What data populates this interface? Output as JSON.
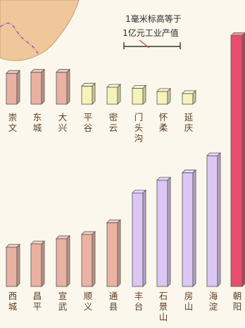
{
  "scale_note": {
    "line1": "1毫米标高等于",
    "line2": "1亿元工业产值"
  },
  "colors": {
    "bar_red": "#e9b2a2",
    "bar_yellow": "#f7f2b8",
    "bar_purple": "#dcc6f3",
    "bar_crimson": "#e84f6c",
    "map_fill": "#f0c79a",
    "map_boundary": "#9b5fb8",
    "paper": "#fbf7ec",
    "outline": "#555555",
    "label": "#5a3d22"
  },
  "chart_data": {
    "type": "bar",
    "title": "",
    "xlabel": "",
    "ylabel": "",
    "value_unit": "毫米",
    "series": [
      {
        "group": "top-row",
        "categories": [
          "崇文",
          "东城",
          "大兴",
          "平谷",
          "密云",
          "门头沟",
          "怀柔",
          "延庆"
        ],
        "values": [
          14.5,
          15,
          15,
          8.5,
          8,
          7.5,
          6,
          5
        ],
        "colors": [
          "bar_red",
          "bar_red",
          "bar_red",
          "bar_yellow",
          "bar_yellow",
          "bar_yellow",
          "bar_yellow",
          "bar_yellow"
        ]
      },
      {
        "group": "bottom-row",
        "categories": [
          "西城",
          "昌平",
          "宣武",
          "顺义",
          "通县",
          "丰台",
          "石景山",
          "房山",
          "海淀",
          "朝阳"
        ],
        "values": [
          18.5,
          20,
          22.5,
          24.5,
          30,
          44,
          50,
          53.5,
          61.5,
          118
        ],
        "colors": [
          "bar_red",
          "bar_red",
          "bar_red",
          "bar_red",
          "bar_red",
          "bar_purple",
          "bar_purple",
          "bar_purple",
          "bar_purple",
          "bar_crimson"
        ]
      }
    ]
  }
}
